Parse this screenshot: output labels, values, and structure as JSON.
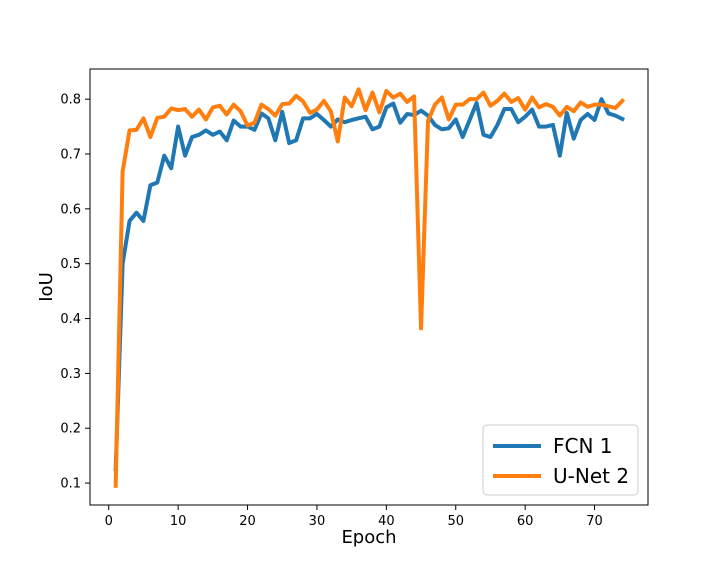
{
  "chart_data": {
    "type": "line",
    "title": "",
    "xlabel": "Epoch",
    "ylabel": "IoU",
    "xlim": [
      -2.7,
      77.7
    ],
    "ylim": [
      0.06,
      0.855
    ],
    "xticks": [
      0,
      10,
      20,
      30,
      40,
      50,
      60,
      70
    ],
    "yticks": [
      0.1,
      0.2,
      0.3,
      0.4,
      0.5,
      0.6,
      0.7,
      0.8
    ],
    "xtick_labels": [
      "0",
      "10",
      "20",
      "30",
      "40",
      "50",
      "60",
      "70"
    ],
    "ytick_labels": [
      "0.1",
      "0.2",
      "0.3",
      "0.4",
      "0.5",
      "0.6",
      "0.7",
      "0.8"
    ],
    "grid": false,
    "legend_position": "lower-right",
    "x": [
      1,
      2,
      3,
      4,
      5,
      6,
      7,
      8,
      9,
      10,
      11,
      12,
      13,
      14,
      15,
      16,
      17,
      18,
      19,
      20,
      21,
      22,
      23,
      24,
      25,
      26,
      27,
      28,
      29,
      30,
      31,
      32,
      33,
      34,
      35,
      36,
      37,
      38,
      39,
      40,
      41,
      42,
      43,
      44,
      45,
      46,
      47,
      48,
      49,
      50,
      51,
      52,
      53,
      54,
      55,
      56,
      57,
      58,
      59,
      60,
      61,
      62,
      63,
      64,
      65,
      66,
      67,
      68,
      69,
      70,
      71,
      72,
      73,
      74
    ],
    "series": [
      {
        "name": "FCN 1",
        "color": "#1f77b4",
        "values": [
          0.125,
          0.5,
          0.578,
          0.593,
          0.578,
          0.643,
          0.648,
          0.697,
          0.674,
          0.75,
          0.697,
          0.731,
          0.735,
          0.743,
          0.735,
          0.741,
          0.725,
          0.761,
          0.75,
          0.75,
          0.744,
          0.774,
          0.765,
          0.725,
          0.777,
          0.72,
          0.725,
          0.765,
          0.765,
          0.773,
          0.762,
          0.75,
          0.763,
          0.758,
          0.762,
          0.765,
          0.768,
          0.745,
          0.75,
          0.785,
          0.792,
          0.757,
          0.773,
          0.771,
          0.779,
          0.77,
          0.753,
          0.745,
          0.747,
          0.763,
          0.731,
          0.762,
          0.793,
          0.735,
          0.731,
          0.753,
          0.782,
          0.782,
          0.758,
          0.768,
          0.781,
          0.75,
          0.75,
          0.753,
          0.697,
          0.775,
          0.728,
          0.762,
          0.773,
          0.762,
          0.8,
          0.774,
          0.77,
          0.764
        ]
      },
      {
        "name": "U-Net 2",
        "color": "#ff7f0e",
        "values": [
          0.095,
          0.668,
          0.743,
          0.744,
          0.765,
          0.731,
          0.766,
          0.768,
          0.783,
          0.78,
          0.782,
          0.768,
          0.781,
          0.763,
          0.785,
          0.788,
          0.772,
          0.79,
          0.778,
          0.752,
          0.757,
          0.79,
          0.782,
          0.77,
          0.791,
          0.792,
          0.806,
          0.796,
          0.775,
          0.781,
          0.797,
          0.778,
          0.723,
          0.803,
          0.787,
          0.818,
          0.78,
          0.812,
          0.776,
          0.815,
          0.803,
          0.81,
          0.795,
          0.805,
          0.382,
          0.76,
          0.79,
          0.803,
          0.763,
          0.79,
          0.79,
          0.8,
          0.8,
          0.812,
          0.788,
          0.797,
          0.81,
          0.795,
          0.802,
          0.781,
          0.803,
          0.785,
          0.791,
          0.786,
          0.77,
          0.786,
          0.778,
          0.794,
          0.786,
          0.79,
          0.79,
          0.787,
          0.784,
          0.797
        ]
      }
    ]
  }
}
